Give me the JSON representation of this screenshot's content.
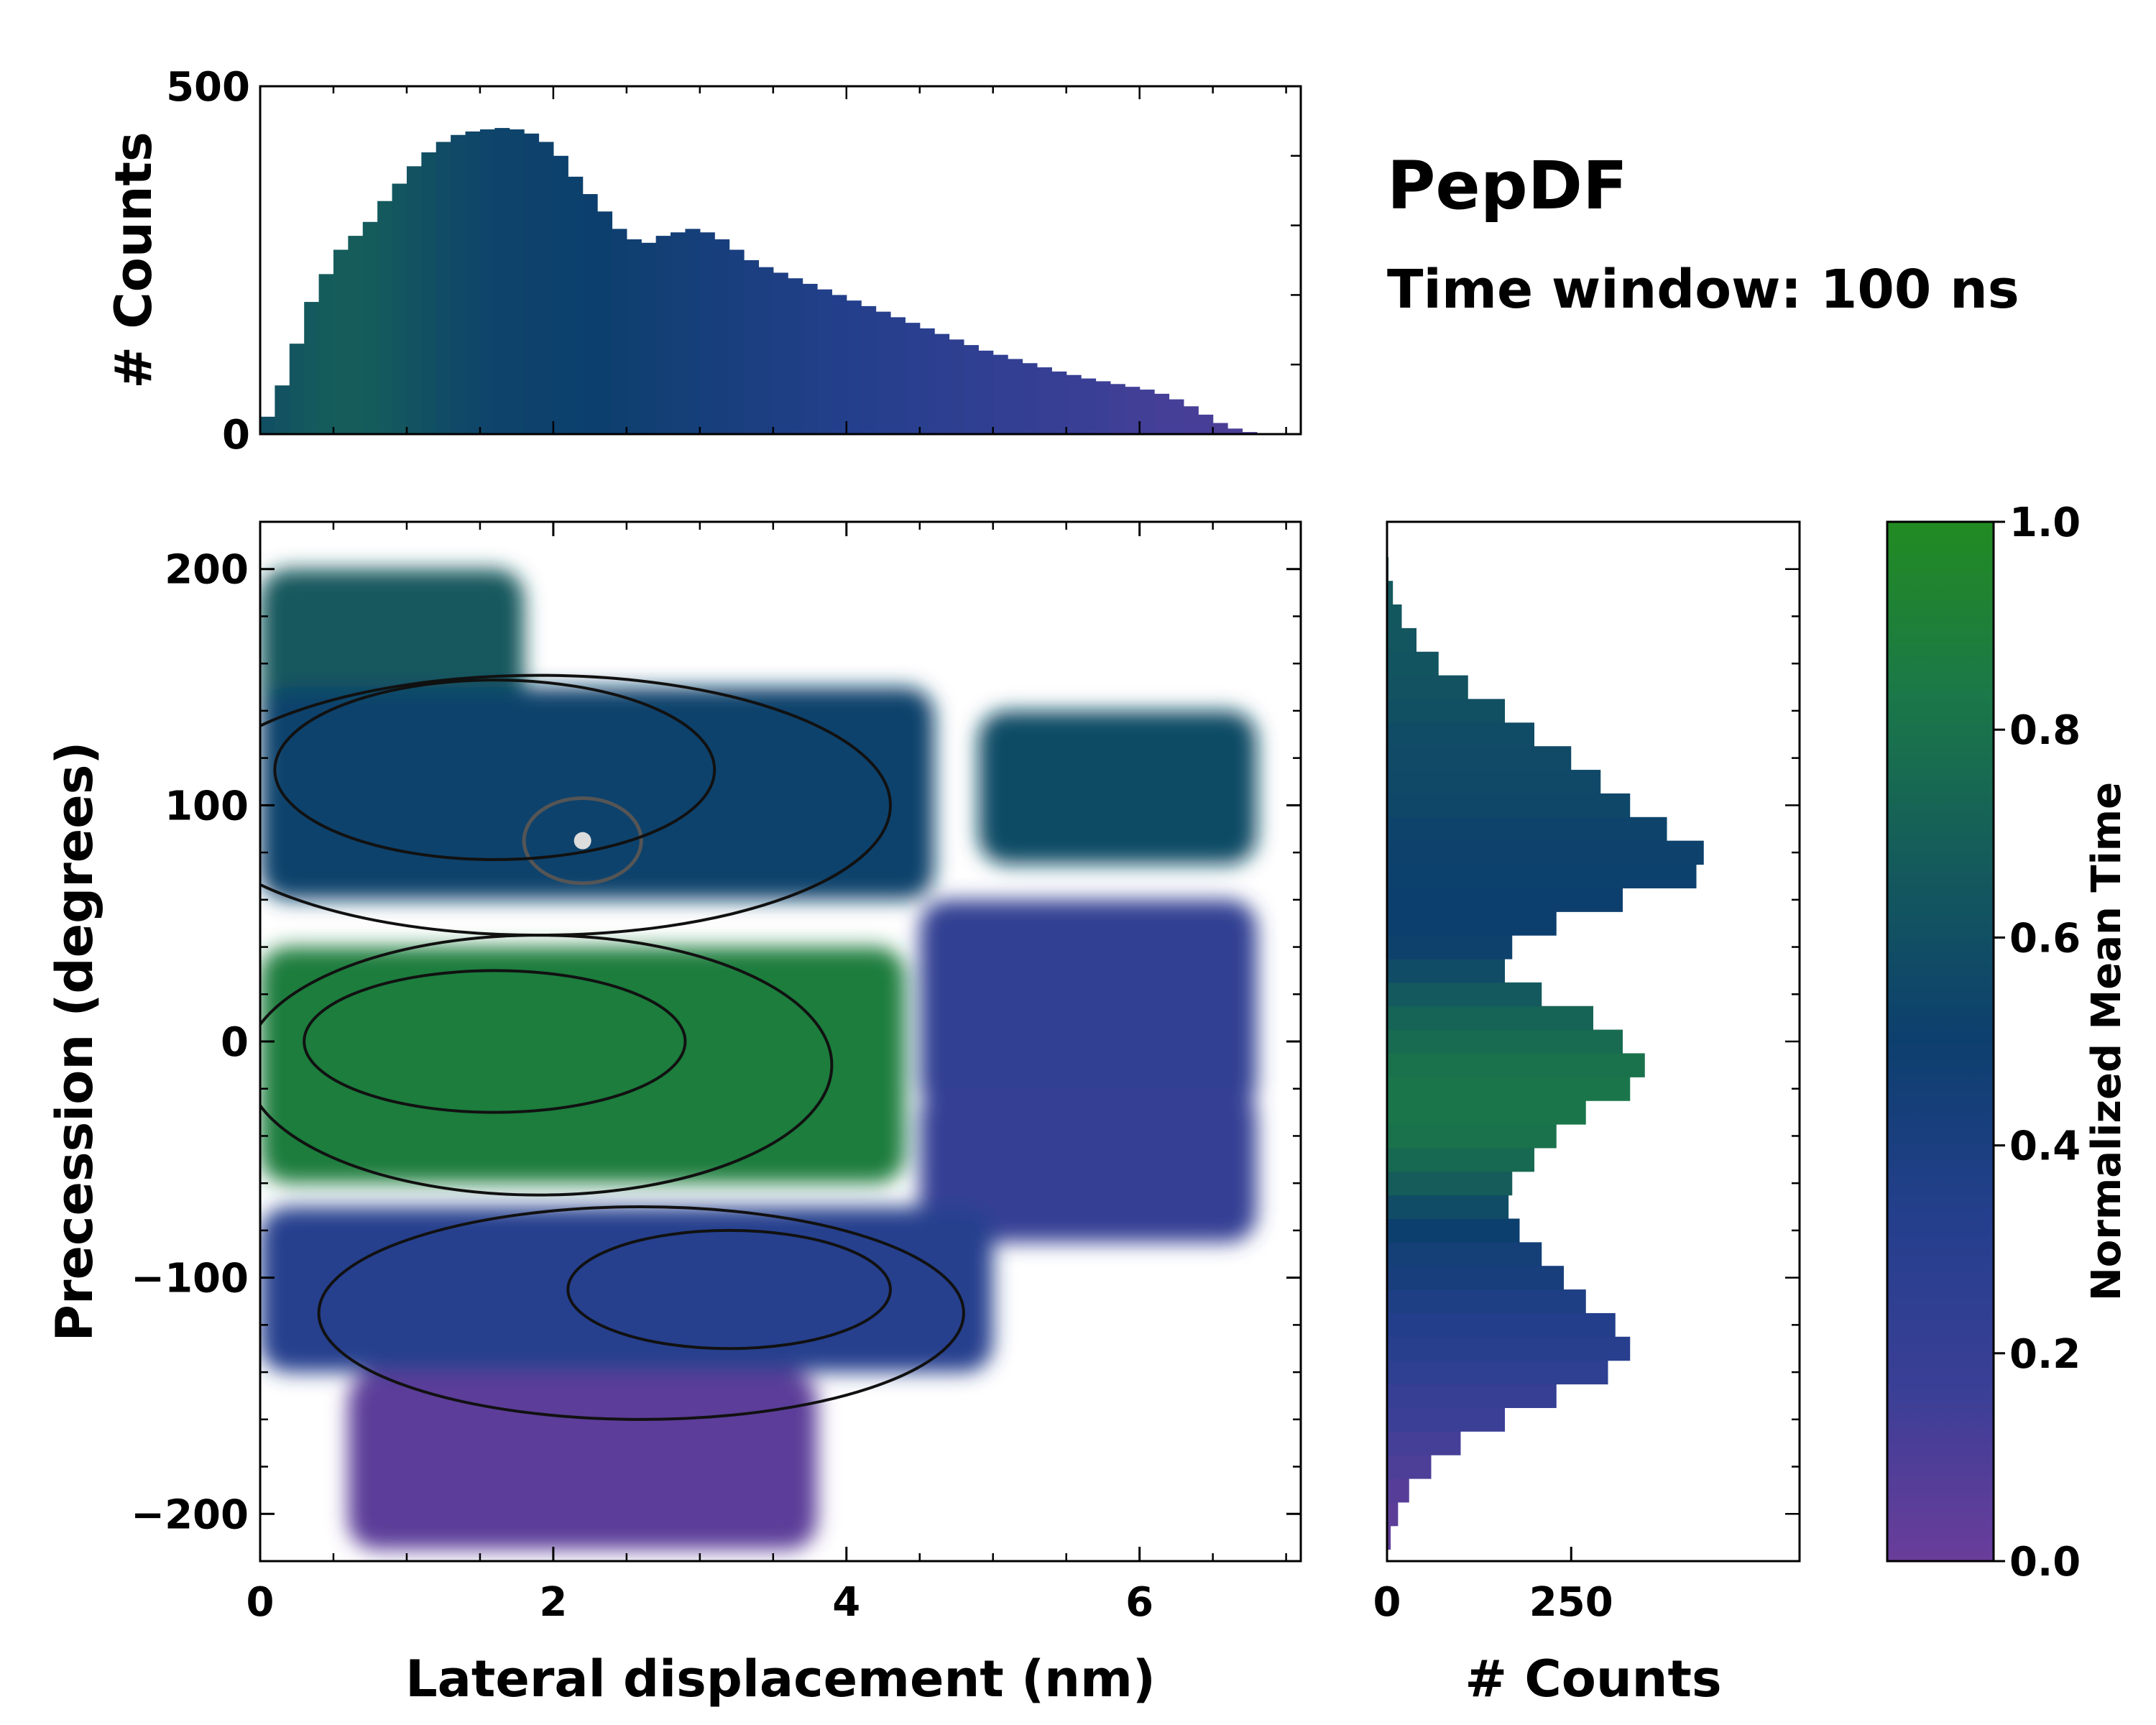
{
  "figure": {
    "title": "PepDF",
    "subtitle": "Time window: 100 ns"
  },
  "colors": {
    "colormap": [
      "#6a3d9a",
      "#3a3f96",
      "#243f8c",
      "#0d3f6e",
      "#145a5c",
      "#1b7848",
      "#228b22"
    ],
    "contour": "#111111",
    "contour_inner": "#555555",
    "peak": "#dddddd"
  },
  "chart_data": [
    {
      "id": "top-histogram",
      "type": "bar",
      "orientation": "vertical",
      "xlim": [
        0,
        7.1
      ],
      "ylim": [
        0,
        500
      ],
      "ylabel": "# Counts",
      "yticks": [
        0,
        500
      ],
      "x": [
        0.05,
        0.15,
        0.25,
        0.35,
        0.45,
        0.55,
        0.65,
        0.75,
        0.85,
        0.95,
        1.05,
        1.15,
        1.25,
        1.35,
        1.45,
        1.55,
        1.65,
        1.75,
        1.85,
        1.95,
        2.05,
        2.15,
        2.25,
        2.35,
        2.45,
        2.55,
        2.65,
        2.75,
        2.85,
        2.95,
        3.05,
        3.15,
        3.25,
        3.35,
        3.45,
        3.55,
        3.65,
        3.75,
        3.85,
        3.95,
        4.05,
        4.15,
        4.25,
        4.35,
        4.45,
        4.55,
        4.65,
        4.75,
        4.85,
        4.95,
        5.05,
        5.15,
        5.25,
        5.35,
        5.45,
        5.55,
        5.65,
        5.75,
        5.85,
        5.95,
        6.05,
        6.15,
        6.25,
        6.35,
        6.45,
        6.55,
        6.65,
        6.75,
        6.85,
        6.95
      ],
      "values": [
        25,
        70,
        130,
        190,
        230,
        265,
        285,
        305,
        335,
        360,
        385,
        405,
        420,
        430,
        435,
        438,
        440,
        438,
        432,
        420,
        400,
        370,
        345,
        320,
        295,
        280,
        275,
        285,
        290,
        295,
        290,
        280,
        265,
        250,
        240,
        232,
        224,
        216,
        208,
        200,
        192,
        184,
        176,
        168,
        160,
        152,
        144,
        136,
        128,
        120,
        114,
        108,
        102,
        96,
        90,
        85,
        80,
        76,
        72,
        68,
        64,
        58,
        50,
        40,
        28,
        16,
        8,
        3,
        1,
        0
      ],
      "time": [
        0.6,
        0.62,
        0.64,
        0.66,
        0.67,
        0.68,
        0.68,
        0.67,
        0.66,
        0.64,
        0.62,
        0.6,
        0.58,
        0.56,
        0.55,
        0.54,
        0.53,
        0.53,
        0.52,
        0.52,
        0.51,
        0.51,
        0.5,
        0.5,
        0.49,
        0.48,
        0.47,
        0.46,
        0.45,
        0.44,
        0.43,
        0.42,
        0.41,
        0.4,
        0.39,
        0.38,
        0.37,
        0.36,
        0.35,
        0.34,
        0.33,
        0.32,
        0.31,
        0.3,
        0.29,
        0.28,
        0.27,
        0.26,
        0.25,
        0.24,
        0.23,
        0.22,
        0.21,
        0.2,
        0.19,
        0.18,
        0.17,
        0.16,
        0.15,
        0.14,
        0.14,
        0.13,
        0.13,
        0.12,
        0.12,
        0.11,
        0.11,
        0.1,
        0.1,
        0.1
      ]
    },
    {
      "id": "joint-map",
      "type": "heatmap",
      "xlabel": "Lateral displacement (nm)",
      "ylabel": "Precession (degrees)",
      "xlim": [
        0,
        7.1
      ],
      "ylim": [
        -220,
        220
      ],
      "xticks": [
        0,
        2,
        4,
        6
      ],
      "yticks": [
        -200,
        -100,
        0,
        100,
        200
      ],
      "ytick_labels": [
        "−200",
        "−100",
        "0",
        "100",
        "200"
      ],
      "color_value": "Normalized Mean Time",
      "regions": [
        {
          "name": "upper-left",
          "x": [
            0.0,
            1.8
          ],
          "y": [
            110,
            200
          ],
          "time": 0.66
        },
        {
          "name": "upper-band",
          "x": [
            0.0,
            4.6
          ],
          "y": [
            60,
            150
          ],
          "time": 0.52
        },
        {
          "name": "upper-right-lobe",
          "x": [
            4.9,
            6.8
          ],
          "y": [
            75,
            140
          ],
          "time": 0.58
        },
        {
          "name": "center-band",
          "x": [
            0.0,
            4.4
          ],
          "y": [
            -60,
            40
          ],
          "time": 0.88
        },
        {
          "name": "right-middle",
          "x": [
            4.5,
            6.8
          ],
          "y": [
            -30,
            60
          ],
          "time": 0.22
        },
        {
          "name": "right-lower",
          "x": [
            4.5,
            6.8
          ],
          "y": [
            -85,
            -20
          ],
          "time": 0.2
        },
        {
          "name": "lower-band",
          "x": [
            0.0,
            5.0
          ],
          "y": [
            -140,
            -70
          ],
          "time": 0.3
        },
        {
          "name": "bottom-purple",
          "x": [
            0.6,
            3.8
          ],
          "y": [
            -215,
            -140
          ],
          "time": 0.05
        }
      ],
      "contour_peak": {
        "x": 2.2,
        "y": 85
      },
      "contour_rings": [
        {
          "cx": 2.2,
          "cy": 85,
          "rx": 0.4,
          "ry": 18
        },
        {
          "cx": 1.6,
          "cy": 115,
          "rx": 1.5,
          "ry": 38
        },
        {
          "cx": 1.9,
          "cy": 100,
          "rx": 2.4,
          "ry": 55
        },
        {
          "cx": 1.6,
          "cy": 0,
          "rx": 1.3,
          "ry": 30
        },
        {
          "cx": 1.9,
          "cy": -10,
          "rx": 2.0,
          "ry": 55
        },
        {
          "cx": 3.2,
          "cy": -105,
          "rx": 1.1,
          "ry": 25
        },
        {
          "cx": 2.6,
          "cy": -115,
          "rx": 2.2,
          "ry": 45
        }
      ]
    },
    {
      "id": "right-histogram",
      "type": "bar",
      "orientation": "horizontal",
      "xlim": [
        0,
        560
      ],
      "ylim": [
        -220,
        220
      ],
      "xlabel": "# Counts",
      "xticks": [
        0,
        250
      ],
      "y": [
        -210,
        -200,
        -190,
        -180,
        -170,
        -160,
        -150,
        -140,
        -130,
        -120,
        -110,
        -100,
        -90,
        -80,
        -70,
        -60,
        -50,
        -40,
        -30,
        -20,
        -10,
        0,
        10,
        20,
        30,
        40,
        50,
        60,
        70,
        80,
        90,
        100,
        110,
        120,
        130,
        140,
        150,
        160,
        170,
        180,
        190,
        200
      ],
      "values": [
        5,
        15,
        30,
        60,
        100,
        160,
        230,
        300,
        330,
        310,
        270,
        240,
        210,
        180,
        165,
        170,
        200,
        230,
        270,
        330,
        350,
        320,
        280,
        210,
        160,
        170,
        230,
        320,
        420,
        430,
        380,
        330,
        290,
        250,
        200,
        160,
        110,
        70,
        40,
        20,
        8,
        2
      ],
      "time": [
        0.03,
        0.05,
        0.07,
        0.1,
        0.13,
        0.16,
        0.2,
        0.25,
        0.3,
        0.34,
        0.38,
        0.42,
        0.45,
        0.5,
        0.58,
        0.68,
        0.75,
        0.8,
        0.82,
        0.82,
        0.8,
        0.76,
        0.72,
        0.66,
        0.58,
        0.52,
        0.5,
        0.5,
        0.51,
        0.52,
        0.53,
        0.55,
        0.56,
        0.57,
        0.58,
        0.6,
        0.62,
        0.63,
        0.64,
        0.65,
        0.66,
        0.66
      ]
    }
  ],
  "colorbar": {
    "label": "Normalized Mean Time",
    "ticks": [
      0,
      0.2,
      0.4,
      0.6,
      0.8,
      1
    ],
    "tick_labels": [
      "0.0",
      "0.2",
      "0.4",
      "0.6",
      "0.8",
      "1.0"
    ]
  }
}
